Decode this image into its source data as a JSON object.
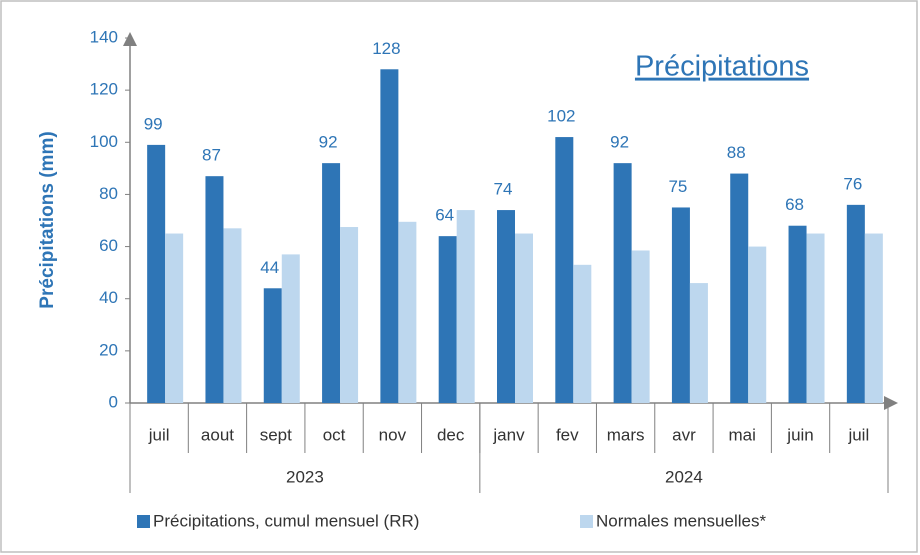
{
  "chart_data": {
    "type": "bar",
    "title": "Précipitations",
    "y_label": "Précipitations (mm)",
    "groups": [
      {
        "name": "2023",
        "categories": [
          "juil",
          "aout",
          "sept",
          "oct",
          "nov",
          "dec"
        ]
      },
      {
        "name": "2024",
        "categories": [
          "janv",
          "fev",
          "mars",
          "avr",
          "mai",
          "juin",
          "juil"
        ]
      }
    ],
    "series": [
      {
        "name": "Précipitations, cumul mensuel (RR)",
        "color": "#2e75b6",
        "values": [
          99,
          87,
          44,
          92,
          128,
          64,
          74,
          102,
          92,
          75,
          88,
          68,
          76
        ]
      },
      {
        "name": "Normales mensuelles*",
        "color": "#bdd7ee",
        "values": [
          65,
          67,
          57,
          67.5,
          69.5,
          74,
          65,
          53,
          58.5,
          46,
          60,
          65,
          65
        ]
      }
    ],
    "ylim": [
      0,
      140
    ],
    "yticks": [
      0,
      20,
      40,
      60,
      80,
      100,
      120,
      140
    ]
  }
}
